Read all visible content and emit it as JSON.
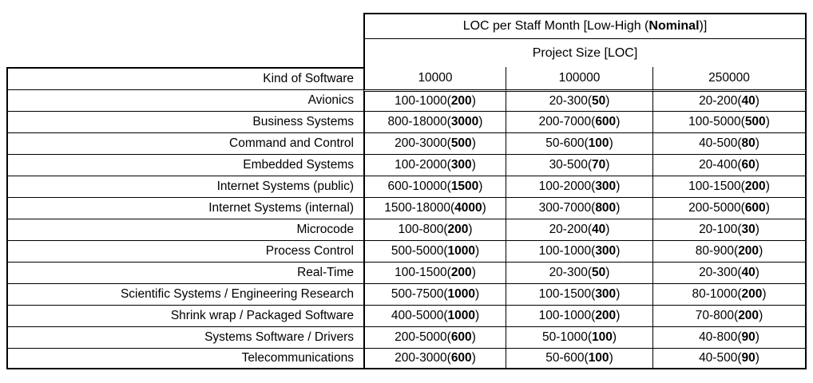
{
  "table": {
    "title": {
      "pre": "LOC per Staff Month [Low-High (",
      "bold": "Nominal",
      "post": ")]"
    },
    "subtitle": "Project Size [LOC]",
    "row_header": "Kind of Software",
    "columns": [
      "10000",
      "100000",
      "250000"
    ],
    "rows": [
      {
        "name": "Avionics",
        "cells": [
          {
            "pre": "100-1000(",
            "bold": "200",
            "post": ")"
          },
          {
            "pre": "20-300(",
            "bold": "50",
            "post": ")"
          },
          {
            "pre": "20-200(",
            "bold": "40",
            "post": ")"
          }
        ]
      },
      {
        "name": "Business Systems",
        "cells": [
          {
            "pre": "800-18000(",
            "bold": "3000",
            "post": ")"
          },
          {
            "pre": "200-7000(",
            "bold": "600",
            "post": ")"
          },
          {
            "pre": "100-5000(",
            "bold": "500",
            "post": ")"
          }
        ]
      },
      {
        "name": "Command and Control",
        "cells": [
          {
            "pre": "200-3000(",
            "bold": "500",
            "post": ")"
          },
          {
            "pre": "50-600(",
            "bold": "100",
            "post": ")"
          },
          {
            "pre": "40-500(",
            "bold": "80",
            "post": ")"
          }
        ]
      },
      {
        "name": "Embedded Systems",
        "cells": [
          {
            "pre": "100-2000(",
            "bold": "300",
            "post": ")"
          },
          {
            "pre": "30-500(",
            "bold": "70",
            "post": ")"
          },
          {
            "pre": "20-400(",
            "bold": "60",
            "post": ")"
          }
        ]
      },
      {
        "name": "Internet Systems (public)",
        "cells": [
          {
            "pre": "600-10000(",
            "bold": "1500",
            "post": ")"
          },
          {
            "pre": "100-2000(",
            "bold": "300",
            "post": ")"
          },
          {
            "pre": "100-1500(",
            "bold": "200",
            "post": ")"
          }
        ]
      },
      {
        "name": "Internet Systems (internal)",
        "cells": [
          {
            "pre": "1500-18000(",
            "bold": "4000",
            "post": ")"
          },
          {
            "pre": "300-7000(",
            "bold": "800",
            "post": ")"
          },
          {
            "pre": "200-5000(",
            "bold": "600",
            "post": ")"
          }
        ]
      },
      {
        "name": "Microcode",
        "cells": [
          {
            "pre": "100-800(",
            "bold": "200",
            "post": ")"
          },
          {
            "pre": "20-200(",
            "bold": "40",
            "post": ")"
          },
          {
            "pre": "20-100(",
            "bold": "30",
            "post": ")"
          }
        ]
      },
      {
        "name": "Process Control",
        "cells": [
          {
            "pre": "500-5000(",
            "bold": "1000",
            "post": ")"
          },
          {
            "pre": "100-1000(",
            "bold": "300",
            "post": ")"
          },
          {
            "pre": "80-900(",
            "bold": "200",
            "post": ")"
          }
        ]
      },
      {
        "name": "Real-Time",
        "cells": [
          {
            "pre": "100-1500(",
            "bold": "200",
            "post": ")"
          },
          {
            "pre": "20-300(",
            "bold": "50",
            "post": ")"
          },
          {
            "pre": "20-300(",
            "bold": "40",
            "post": ")"
          }
        ]
      },
      {
        "name": "Scientific Systems / Engineering Research",
        "cells": [
          {
            "pre": "500-7500(",
            "bold": "1000",
            "post": ")"
          },
          {
            "pre": "100-1500(",
            "bold": "300",
            "post": ")"
          },
          {
            "pre": "80-1000(",
            "bold": "200",
            "post": ")"
          }
        ]
      },
      {
        "name": "Shrink wrap / Packaged Software",
        "cells": [
          {
            "pre": "400-5000(",
            "bold": "1000",
            "post": ")"
          },
          {
            "pre": "100-1000(",
            "bold": "200",
            "post": ")"
          },
          {
            "pre": "70-800(",
            "bold": "200",
            "post": ")"
          }
        ]
      },
      {
        "name": "Systems Software / Drivers",
        "cells": [
          {
            "pre": "200-5000(",
            "bold": "600",
            "post": ")"
          },
          {
            "pre": "50-1000(",
            "bold": "100",
            "post": ")"
          },
          {
            "pre": "40-800(",
            "bold": "90",
            "post": ")"
          }
        ]
      },
      {
        "name": "Telecommunications",
        "cells": [
          {
            "pre": "200-3000(",
            "bold": "600",
            "post": ")"
          },
          {
            "pre": "50-600(",
            "bold": "100",
            "post": ")"
          },
          {
            "pre": "40-500(",
            "bold": "90",
            "post": ")"
          }
        ]
      }
    ]
  }
}
